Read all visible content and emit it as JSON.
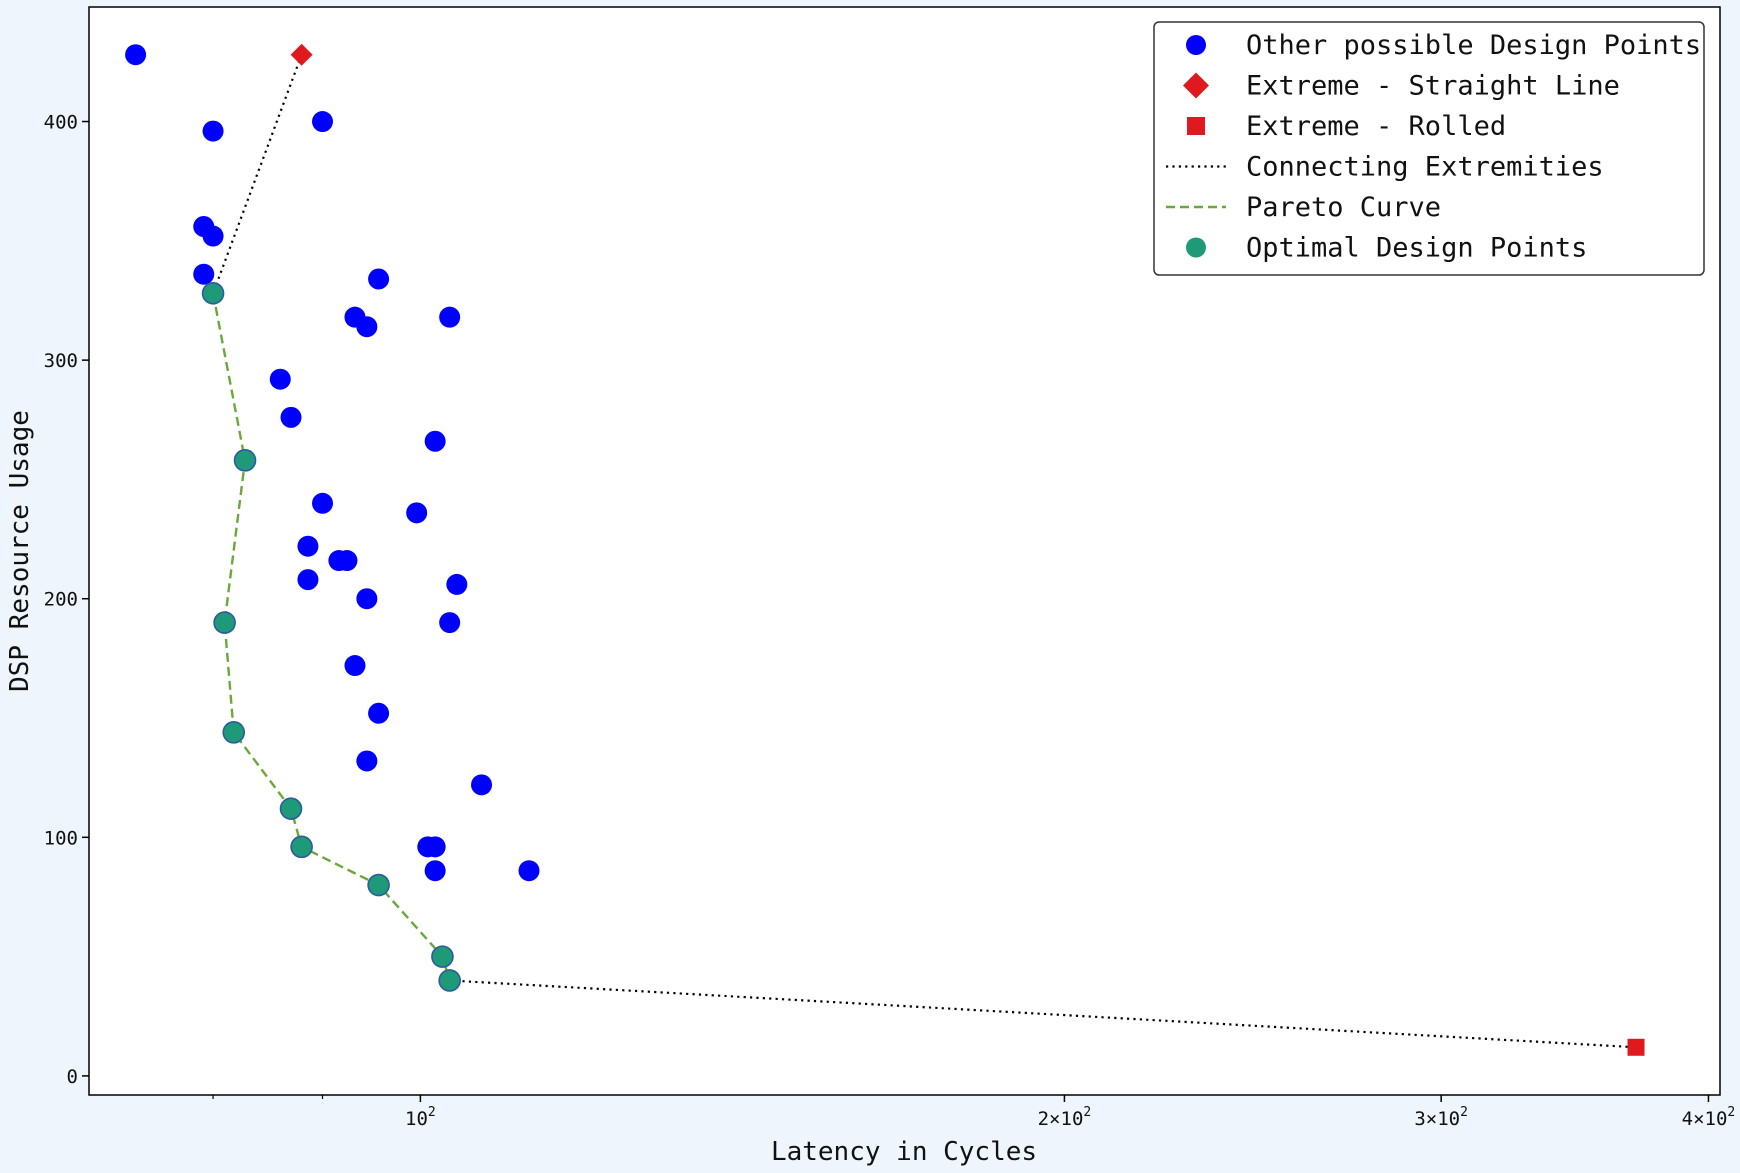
{
  "chart_data": {
    "type": "scatter",
    "xlabel": "Latency in Cycles",
    "ylabel": "DSP Resource Usage",
    "xscale": "log",
    "xlim": [
      70,
      405
    ],
    "ylim": [
      -8,
      448
    ],
    "grid": false,
    "legend_position": "top-right",
    "x_ticks": [
      {
        "value": 100,
        "base": "10",
        "exp": "2",
        "mult": ""
      },
      {
        "value": 200,
        "base": "10",
        "exp": "2",
        "mult": "2×"
      },
      {
        "value": 300,
        "base": "10",
        "exp": "2",
        "mult": "3×"
      },
      {
        "value": 400,
        "base": "10",
        "exp": "2",
        "mult": "4×"
      }
    ],
    "x_minor_ticks": [
      80,
      90
    ],
    "y_ticks": [
      {
        "value": 0,
        "label": "0"
      },
      {
        "value": 100,
        "label": "100"
      },
      {
        "value": 200,
        "label": "200"
      },
      {
        "value": 300,
        "label": "300"
      },
      {
        "value": 400,
        "label": "400"
      }
    ],
    "legend": [
      {
        "key": "other",
        "label": "Other possible Design Points"
      },
      {
        "key": "straight",
        "label": "Extreme - Straight Line"
      },
      {
        "key": "rolled",
        "label": "Extreme - Rolled"
      },
      {
        "key": "connect",
        "label": "Connecting Extremities"
      },
      {
        "key": "pareto",
        "label": "Pareto Curve"
      },
      {
        "key": "optimal",
        "label": "Optimal Design Points"
      }
    ],
    "colors": {
      "other": "#0000ff",
      "extreme": "#e0191f",
      "connect": "#000000",
      "pareto": "#6aa83a",
      "optimal": "#1e9a78",
      "optimal_edge": "#2d5aa0"
    },
    "series": [
      {
        "key": "other",
        "points": [
          [
            73.6,
            428
          ],
          [
            80,
            396
          ],
          [
            90,
            400
          ],
          [
            79.2,
            356
          ],
          [
            80,
            352
          ],
          [
            79.2,
            336
          ],
          [
            95.6,
            334
          ],
          [
            93.2,
            318
          ],
          [
            94.4,
            314
          ],
          [
            103.2,
            318
          ],
          [
            86,
            292
          ],
          [
            87,
            276
          ],
          [
            101.6,
            266
          ],
          [
            90,
            240
          ],
          [
            99.6,
            236
          ],
          [
            88.6,
            222
          ],
          [
            91.6,
            216
          ],
          [
            92.4,
            216
          ],
          [
            88.6,
            208
          ],
          [
            104,
            206
          ],
          [
            94.4,
            200
          ],
          [
            103.2,
            190
          ],
          [
            93.2,
            172
          ],
          [
            95.6,
            152
          ],
          [
            94.4,
            132
          ],
          [
            106.8,
            122
          ],
          [
            100.8,
            96
          ],
          [
            101.6,
            96
          ],
          [
            101.6,
            86
          ],
          [
            112.4,
            86
          ]
        ]
      },
      {
        "key": "straight",
        "points": [
          [
            88,
            428
          ]
        ]
      },
      {
        "key": "rolled",
        "points": [
          [
            370,
            12
          ]
        ]
      },
      {
        "key": "optimal",
        "points": [
          [
            80,
            328
          ],
          [
            82.8,
            258
          ],
          [
            81,
            190
          ],
          [
            81.8,
            144
          ],
          [
            87,
            112
          ],
          [
            88,
            96
          ],
          [
            95.6,
            80
          ],
          [
            102.4,
            50
          ],
          [
            103.2,
            40
          ]
        ]
      }
    ],
    "connecting_lines": [
      [
        [
          88,
          428
        ],
        [
          80,
          328
        ]
      ],
      [
        [
          103.2,
          40
        ],
        [
          370,
          12
        ]
      ]
    ]
  }
}
